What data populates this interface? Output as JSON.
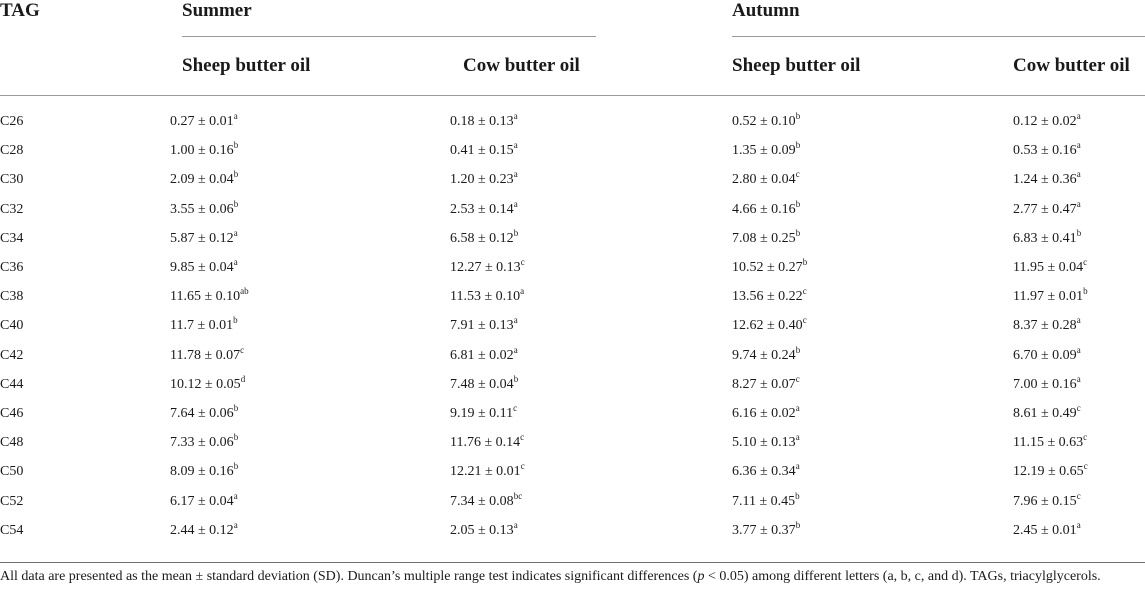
{
  "table": {
    "header": {
      "tag": "TAG",
      "summer": "Summer",
      "autumn": "Autumn",
      "sheep": "Sheep butter oil",
      "cow": "Cow butter oil"
    },
    "rows": [
      {
        "tag": "C26",
        "cells": [
          [
            "0.27 ± 0.01",
            "a"
          ],
          [
            "0.18 ± 0.13",
            "a"
          ],
          [
            "0.52 ± 0.10",
            "b"
          ],
          [
            "0.12 ± 0.02",
            "a"
          ]
        ]
      },
      {
        "tag": "C28",
        "cells": [
          [
            "1.00 ± 0.16",
            "b"
          ],
          [
            "0.41 ± 0.15",
            "a"
          ],
          [
            "1.35 ± 0.09",
            "b"
          ],
          [
            "0.53 ± 0.16",
            "a"
          ]
        ]
      },
      {
        "tag": "C30",
        "cells": [
          [
            "2.09 ± 0.04",
            "b"
          ],
          [
            "1.20 ± 0.23",
            "a"
          ],
          [
            "2.80 ± 0.04",
            "c"
          ],
          [
            "1.24 ± 0.36",
            "a"
          ]
        ]
      },
      {
        "tag": "C32",
        "cells": [
          [
            "3.55 ± 0.06",
            "b"
          ],
          [
            "2.53 ± 0.14",
            "a"
          ],
          [
            "4.66 ± 0.16",
            "b"
          ],
          [
            "2.77 ± 0.47",
            "a"
          ]
        ]
      },
      {
        "tag": "C34",
        "cells": [
          [
            "5.87 ± 0.12",
            "a"
          ],
          [
            "6.58 ± 0.12",
            "b"
          ],
          [
            "7.08 ± 0.25",
            "b"
          ],
          [
            "6.83 ± 0.41",
            "b"
          ]
        ]
      },
      {
        "tag": "C36",
        "cells": [
          [
            "9.85 ± 0.04",
            "a"
          ],
          [
            "12.27 ± 0.13",
            "c"
          ],
          [
            "10.52 ± 0.27",
            "b"
          ],
          [
            "11.95 ± 0.04",
            "c"
          ]
        ]
      },
      {
        "tag": "C38",
        "cells": [
          [
            "11.65 ± 0.10",
            "ab"
          ],
          [
            "11.53 ± 0.10",
            "a"
          ],
          [
            "13.56 ± 0.22",
            "c"
          ],
          [
            "11.97 ± 0.01",
            "b"
          ]
        ]
      },
      {
        "tag": "C40",
        "cells": [
          [
            "11.7 ± 0.01",
            "b"
          ],
          [
            "7.91 ± 0.13",
            "a"
          ],
          [
            "12.62 ± 0.40",
            "c"
          ],
          [
            "8.37 ± 0.28",
            "a"
          ]
        ]
      },
      {
        "tag": "C42",
        "cells": [
          [
            "11.78 ± 0.07",
            "c"
          ],
          [
            "6.81 ± 0.02",
            "a"
          ],
          [
            "9.74 ± 0.24",
            "b"
          ],
          [
            "6.70 ± 0.09",
            "a"
          ]
        ]
      },
      {
        "tag": "C44",
        "cells": [
          [
            "10.12 ± 0.05",
            "d"
          ],
          [
            "7.48 ± 0.04",
            "b"
          ],
          [
            "8.27 ± 0.07",
            "c"
          ],
          [
            "7.00 ± 0.16",
            "a"
          ]
        ]
      },
      {
        "tag": "C46",
        "cells": [
          [
            "7.64 ± 0.06",
            "b"
          ],
          [
            "9.19 ± 0.11",
            "c"
          ],
          [
            "6.16 ± 0.02",
            "a"
          ],
          [
            "8.61 ± 0.49",
            "c"
          ]
        ]
      },
      {
        "tag": "C48",
        "cells": [
          [
            "7.33 ± 0.06",
            "b"
          ],
          [
            "11.76 ± 0.14",
            "c"
          ],
          [
            "5.10 ± 0.13",
            "a"
          ],
          [
            "11.15 ± 0.63",
            "c"
          ]
        ]
      },
      {
        "tag": "C50",
        "cells": [
          [
            "8.09 ± 0.16",
            "b"
          ],
          [
            "12.21 ± 0.01",
            "c"
          ],
          [
            "6.36 ± 0.34",
            "a"
          ],
          [
            "12.19 ± 0.65",
            "c"
          ]
        ]
      },
      {
        "tag": "C52",
        "cells": [
          [
            "6.17 ± 0.04",
            "a"
          ],
          [
            "7.34 ± 0.08",
            "bc"
          ],
          [
            "7.11 ± 0.45",
            "b"
          ],
          [
            "7.96 ± 0.15",
            "c"
          ]
        ]
      },
      {
        "tag": "C54",
        "cells": [
          [
            "2.44 ± 0.12",
            "a"
          ],
          [
            "2.05 ± 0.13",
            "a"
          ],
          [
            "3.77 ± 0.37",
            "b"
          ],
          [
            "2.45 ± 0.01",
            "a"
          ]
        ]
      }
    ]
  },
  "footnote": {
    "part1": "All data are presented as the mean ± standard deviation (SD). Duncan’s multiple range test indicates significant differences (",
    "p_symbol": "p",
    "part2": " < 0.05) among different letters (a, b, c, and d). TAGs, triacylglycerols."
  }
}
